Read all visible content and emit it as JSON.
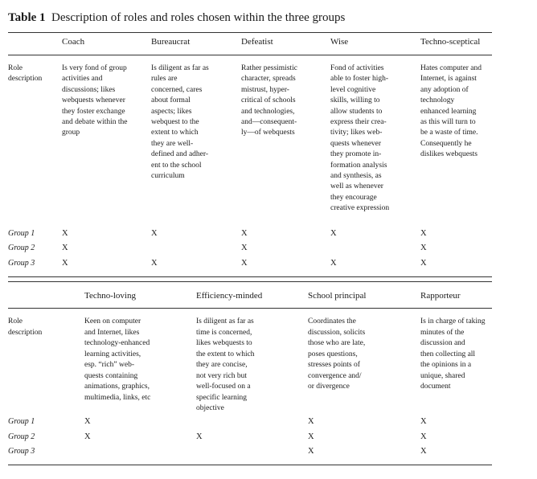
{
  "title": {
    "label": "Table 1",
    "text": "Description of roles and roles chosen within the three groups"
  },
  "row_label": [
    "Role",
    "description"
  ],
  "group_labels": [
    "Group 1",
    "Group 2",
    "Group 3"
  ],
  "mark": "X",
  "table1": {
    "headers": [
      "Coach",
      "Bureaucrat",
      "Defeatist",
      "Wise",
      "Techno-sceptical"
    ],
    "descriptions": [
      [
        "Is very fond of group",
        "activities and",
        "discussions; likes",
        "webquests whenever",
        "they foster exchange",
        "and debate within the",
        "group"
      ],
      [
        "Is diligent as far as",
        "rules are",
        "concerned, cares",
        "about formal",
        "aspects; likes",
        "webquest to the",
        "extent to which",
        "they are well-",
        "defined and adher-",
        "ent to the school",
        "curriculum"
      ],
      [
        "Rather pessimistic",
        "character, spreads",
        "mistrust, hyper-",
        "critical of schools",
        "and technologies,",
        "and—consequent-",
        "ly—of webquests"
      ],
      [
        "Fond of activities",
        "able to foster high-",
        "level cognitive",
        "skills, willing to",
        "allow students to",
        "express their crea-",
        "tivity; likes web-",
        "quests whenever",
        "they promote in-",
        "formation analysis",
        "and synthesis, as",
        "well as whenever",
        "they encourage",
        "creative expression"
      ],
      [
        "Hates computer and",
        "Internet, is against",
        "any adoption of",
        "technology",
        "enhanced learning",
        "as this will turn to",
        "be a waste of time.",
        "Consequently he",
        "dislikes webquests"
      ]
    ],
    "marks": [
      [
        true,
        true,
        true,
        true,
        true
      ],
      [
        true,
        false,
        true,
        false,
        true
      ],
      [
        true,
        true,
        true,
        true,
        true
      ]
    ]
  },
  "table2": {
    "headers": [
      "Techno-loving",
      "Efficiency-minded",
      "School principal",
      "Rapporteur"
    ],
    "descriptions": [
      [
        "Keen on computer",
        "and Internet, likes",
        "technology-enhanced",
        "learning activities,",
        "esp. “rich” web-",
        "quests containing",
        "animations, graphics,",
        "multimedia, links, etc"
      ],
      [
        "Is diligent as far as",
        "time is concerned,",
        "likes webquests to",
        "the extent to which",
        "they are concise,",
        "not very rich but",
        "well-focused on a",
        "specific learning",
        "objective"
      ],
      [
        "Coordinates the",
        "discussion, solicits",
        "those who are late,",
        "poses questions,",
        "stresses points of",
        "convergence and/",
        "or divergence"
      ],
      [
        "Is in charge of taking",
        "minutes of the",
        "discussion and",
        "then collecting all",
        "the opinions in a",
        "unique, shared",
        "document"
      ]
    ],
    "marks": [
      [
        true,
        false,
        true,
        true
      ],
      [
        true,
        true,
        true,
        true
      ],
      [
        false,
        false,
        true,
        true
      ]
    ]
  }
}
